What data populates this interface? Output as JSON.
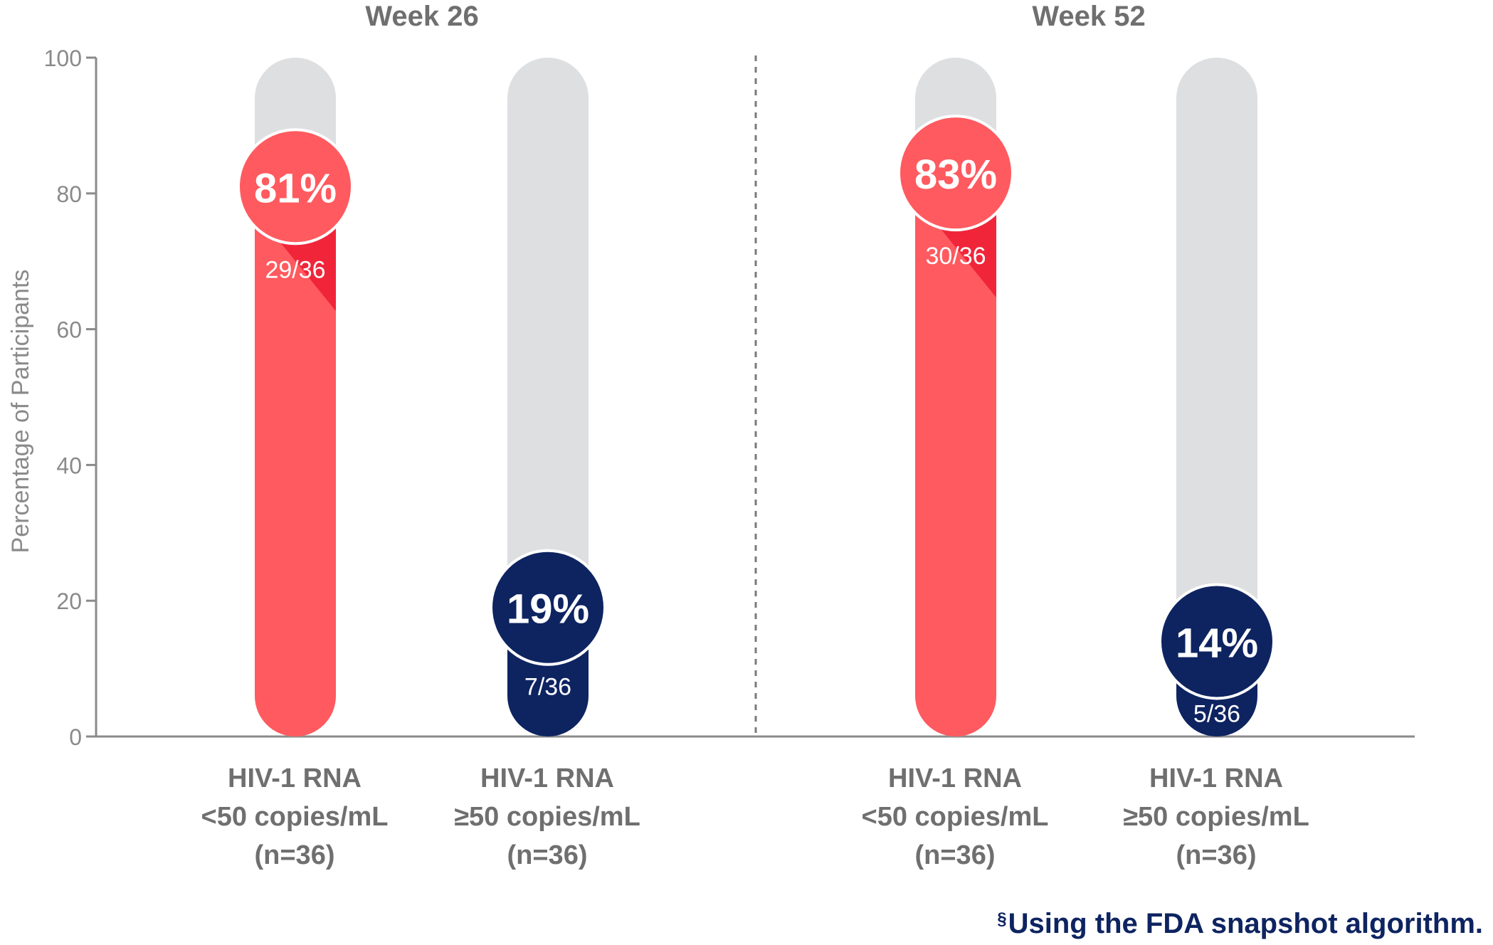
{
  "chart_data": {
    "type": "bar",
    "title": "",
    "ylabel": "Percentage of Participants",
    "xlabel": "",
    "ylim": [
      0,
      100
    ],
    "yticks": [
      "0",
      "20",
      "40",
      "60",
      "80",
      "100"
    ],
    "grid": false,
    "groups": [
      {
        "name": "Week 26",
        "bars": [
          {
            "label": [
              "HIV-1 RNA",
              "<50 copies/mL",
              "(n=36)"
            ],
            "value": 81,
            "percent_label": "81%",
            "fraction_label": "29/36",
            "color": "#ff5a5f"
          },
          {
            "label": [
              "HIV-1 RNA",
              "≥50 copies/mL",
              "(n=36)"
            ],
            "value": 19,
            "percent_label": "19%",
            "fraction_label": "7/36",
            "color": "#0e2461"
          }
        ]
      },
      {
        "name": "Week 52",
        "bars": [
          {
            "label": [
              "HIV-1 RNA",
              "<50 copies/mL",
              "(n=36)"
            ],
            "value": 83,
            "percent_label": "83%",
            "fraction_label": "30/36",
            "color": "#ff5a5f"
          },
          {
            "label": [
              "HIV-1 RNA",
              "≥50 copies/mL",
              "(n=36)"
            ],
            "value": 14,
            "percent_label": "14%",
            "fraction_label": "5/36",
            "color": "#0e2461"
          }
        ]
      }
    ],
    "track_color": "#dedfe1",
    "axis_color": "#8a8a8a"
  },
  "footnote": {
    "marker": "§",
    "text": "Using the FDA snapshot algorithm."
  }
}
